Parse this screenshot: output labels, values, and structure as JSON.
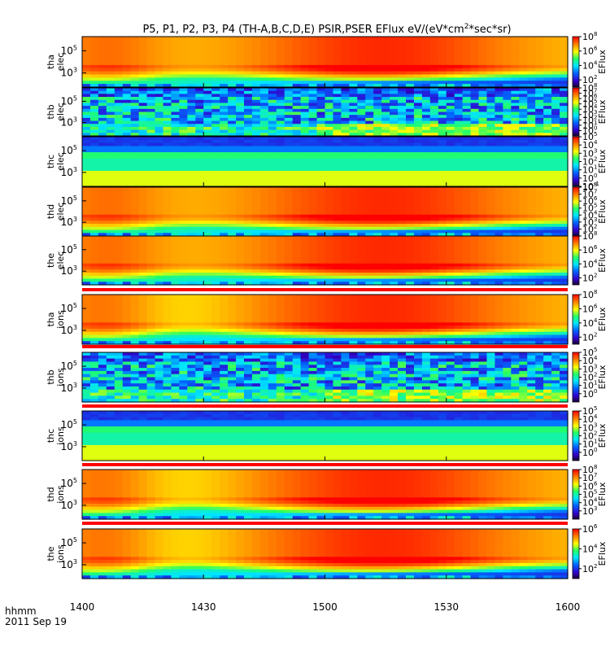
{
  "chart_data": {
    "type": "heatmap",
    "title": "P5, P1, P2, P3, P4 (TH-A,B,C,D,E) PSIR,PSER EFlux eV/(eV*cm",
    "title_sup": "2",
    "title_tail": "*sec*sr)",
    "x_axis": {
      "tick_labels": [
        "1400",
        "1430",
        "1500",
        "1530",
        "1600"
      ],
      "tick_minutes": [
        0,
        30,
        60,
        90,
        120
      ],
      "range_minutes": [
        0,
        120
      ],
      "unit_label": "hhmm",
      "date_label": "2011 Sep 19"
    },
    "colorbar_title": "EFlux",
    "panels": [
      {
        "probe": "tha",
        "species": "elec",
        "yticks": [
          "10",
          "10"
        ],
        "yexp": [
          "5",
          "3"
        ],
        "cbar": {
          "min_exp": 1,
          "max_exp": 8,
          "labeled_exps": [
            2,
            4,
            6,
            8
          ]
        }
      },
      {
        "probe": "thb",
        "species": "elec",
        "yticks": [
          "10",
          "10"
        ],
        "yexp": [
          "5",
          "3"
        ],
        "cbar": {
          "min_exp": -1,
          "max_exp": 8,
          "labeled_exps": [
            0,
            1,
            2,
            3,
            4,
            5,
            6,
            7,
            8
          ]
        }
      },
      {
        "probe": "thc",
        "species": "elec",
        "yticks": [
          "10",
          "10"
        ],
        "yexp": [
          "5",
          "3"
        ],
        "cbar": {
          "min_exp": -1,
          "max_exp": 5,
          "labeled_exps": [
            -1,
            0,
            1,
            2,
            3,
            4,
            5
          ]
        }
      },
      {
        "probe": "thd",
        "species": "elec",
        "yticks": [
          "10",
          "10"
        ],
        "yexp": [
          "5",
          "3"
        ],
        "cbar": {
          "min_exp": 1,
          "max_exp": 8,
          "labeled_exps": [
            2,
            3,
            4,
            5,
            6,
            7,
            8
          ]
        }
      },
      {
        "probe": "the",
        "species": "elec",
        "yticks": [
          "10",
          "10"
        ],
        "yexp": [
          "5",
          "3"
        ],
        "cbar": {
          "min_exp": 1,
          "max_exp": 8,
          "labeled_exps": [
            2,
            4,
            6,
            8
          ]
        }
      },
      {
        "probe": "tha",
        "species": "ions",
        "yticks": [
          "10",
          "10"
        ],
        "yexp": [
          "5",
          "3"
        ],
        "cbar": {
          "min_exp": 1,
          "max_exp": 8,
          "labeled_exps": [
            2,
            4,
            6,
            8
          ]
        }
      },
      {
        "probe": "thb",
        "species": "ions",
        "yticks": [
          "10",
          "10"
        ],
        "yexp": [
          "5",
          "3"
        ],
        "cbar": {
          "min_exp": -1,
          "max_exp": 5,
          "labeled_exps": [
            0,
            1,
            2,
            3,
            4,
            5
          ]
        }
      },
      {
        "probe": "thc",
        "species": "ions",
        "yticks": [
          "10",
          "10"
        ],
        "yexp": [
          "5",
          "3"
        ],
        "cbar": {
          "min_exp": -1,
          "max_exp": 5,
          "labeled_exps": [
            0,
            1,
            2,
            3,
            4,
            5
          ]
        }
      },
      {
        "probe": "thd",
        "species": "ions",
        "yticks": [
          "10",
          "10"
        ],
        "yexp": [
          "5",
          "3"
        ],
        "cbar": {
          "min_exp": 2,
          "max_exp": 8,
          "labeled_exps": [
            3,
            4,
            5,
            6,
            7,
            8
          ]
        }
      },
      {
        "probe": "the",
        "species": "ions",
        "yticks": [
          "10",
          "10"
        ],
        "yexp": [
          "5",
          "3"
        ],
        "cbar": {
          "min_exp": 1,
          "max_exp": 6,
          "labeled_exps": [
            2,
            4,
            6
          ]
        }
      }
    ]
  }
}
